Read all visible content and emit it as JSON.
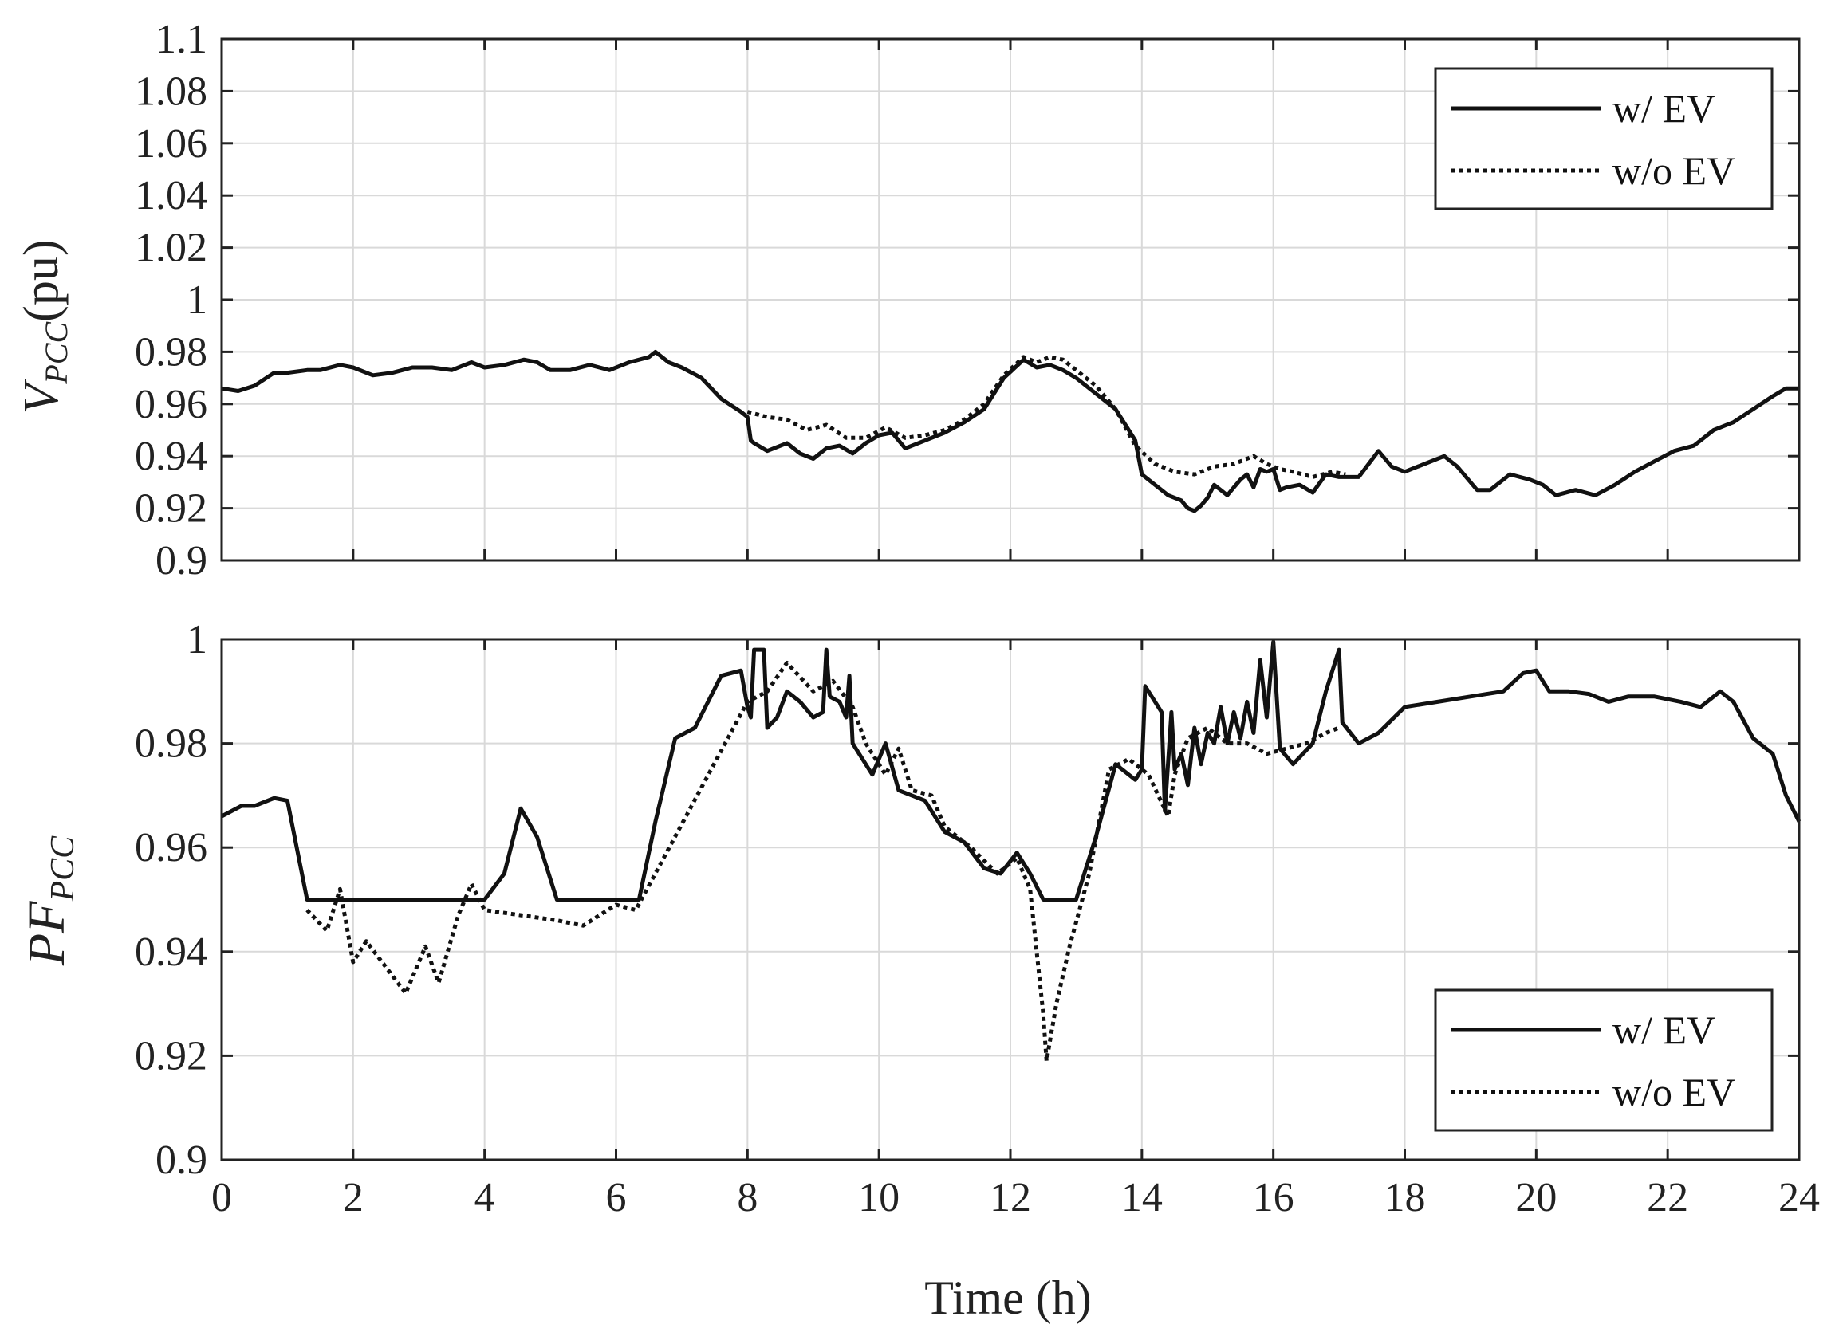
{
  "chart_data": [
    {
      "type": "line",
      "ylabel": {
        "main": "V",
        "sub": "PCC",
        "suffix": "(pu)"
      },
      "xlabel": "",
      "xlim": [
        0,
        24
      ],
      "ylim": [
        0.9,
        1.1
      ],
      "grid": true,
      "legend_position": "top-right",
      "xticks": [
        0,
        2,
        4,
        6,
        8,
        10,
        12,
        14,
        16,
        18,
        20,
        22,
        24
      ],
      "xtick_labels": [
        "",
        "",
        "",
        "",
        "",
        "",
        "",
        "",
        "",
        "",
        "",
        "",
        ""
      ],
      "yticks": [
        0.9,
        0.92,
        0.94,
        0.96,
        0.98,
        1.0,
        1.02,
        1.04,
        1.06,
        1.08,
        1.1
      ],
      "ytick_labels": [
        "0.9",
        "0.92",
        "0.94",
        "0.96",
        "0.98",
        "1",
        "1.02",
        "1.04",
        "1.06",
        "1.08",
        "1.1"
      ],
      "series": [
        {
          "name": "w/ EV",
          "style": "solid",
          "color": "#111111",
          "x": [
            0,
            0.25,
            0.5,
            0.8,
            1.0,
            1.3,
            1.5,
            1.8,
            2.0,
            2.3,
            2.6,
            2.9,
            3.2,
            3.5,
            3.8,
            4.0,
            4.3,
            4.6,
            4.8,
            5.0,
            5.3,
            5.6,
            5.9,
            6.2,
            6.5,
            6.6,
            6.8,
            7.0,
            7.3,
            7.6,
            7.9,
            8.0,
            8.05,
            8.1,
            8.3,
            8.6,
            8.8,
            9.0,
            9.2,
            9.4,
            9.6,
            9.8,
            10.0,
            10.2,
            10.4,
            10.6,
            10.8,
            11.0,
            11.3,
            11.6,
            11.9,
            12.2,
            12.4,
            12.6,
            12.8,
            13.0,
            13.3,
            13.6,
            13.9,
            14.0,
            14.2,
            14.4,
            14.6,
            14.7,
            14.8,
            14.9,
            15.0,
            15.1,
            15.2,
            15.3,
            15.4,
            15.5,
            15.6,
            15.7,
            15.8,
            15.9,
            16.0,
            16.1,
            16.2,
            16.4,
            16.6,
            16.8,
            17.0,
            17.3,
            17.6,
            17.8,
            18.0,
            18.3,
            18.6,
            18.8,
            19.1,
            19.3,
            19.6,
            19.9,
            20.1,
            20.3,
            20.6,
            20.9,
            21.2,
            21.5,
            21.8,
            22.1,
            22.4,
            22.7,
            23.0,
            23.3,
            23.6,
            23.8,
            24.0
          ],
          "y": [
            0.966,
            0.965,
            0.967,
            0.972,
            0.972,
            0.973,
            0.973,
            0.975,
            0.974,
            0.971,
            0.972,
            0.974,
            0.974,
            0.973,
            0.976,
            0.974,
            0.975,
            0.977,
            0.976,
            0.973,
            0.973,
            0.975,
            0.973,
            0.976,
            0.978,
            0.98,
            0.976,
            0.974,
            0.97,
            0.962,
            0.957,
            0.955,
            0.946,
            0.945,
            0.942,
            0.945,
            0.941,
            0.939,
            0.943,
            0.944,
            0.941,
            0.945,
            0.948,
            0.949,
            0.943,
            0.945,
            0.947,
            0.949,
            0.953,
            0.958,
            0.97,
            0.977,
            0.974,
            0.975,
            0.973,
            0.97,
            0.964,
            0.958,
            0.946,
            0.933,
            0.929,
            0.925,
            0.923,
            0.92,
            0.919,
            0.921,
            0.924,
            0.929,
            0.927,
            0.925,
            0.928,
            0.931,
            0.933,
            0.928,
            0.935,
            0.934,
            0.935,
            0.927,
            0.928,
            0.929,
            0.926,
            0.933,
            0.932,
            0.932,
            0.942,
            0.936,
            0.934,
            0.937,
            0.94,
            0.936,
            0.927,
            0.927,
            0.933,
            0.931,
            0.929,
            0.925,
            0.927,
            0.925,
            0.929,
            0.934,
            0.938,
            0.942,
            0.944,
            0.95,
            0.953,
            0.958,
            0.963,
            0.966,
            0.966
          ]
        },
        {
          "name": "w/o EV",
          "style": "dotted",
          "color": "#111111",
          "x": [
            8.0,
            8.3,
            8.6,
            8.9,
            9.2,
            9.5,
            9.8,
            10.1,
            10.4,
            10.7,
            11.0,
            11.3,
            11.6,
            11.9,
            12.2,
            12.4,
            12.6,
            12.8,
            13.0,
            13.3,
            13.6,
            13.9,
            14.2,
            14.5,
            14.8,
            15.1,
            15.4,
            15.7,
            15.9,
            16.1,
            16.3,
            16.6,
            16.9,
            17.1
          ],
          "y": [
            0.957,
            0.955,
            0.954,
            0.95,
            0.952,
            0.947,
            0.947,
            0.951,
            0.947,
            0.948,
            0.95,
            0.954,
            0.96,
            0.971,
            0.978,
            0.976,
            0.978,
            0.977,
            0.973,
            0.967,
            0.958,
            0.944,
            0.937,
            0.934,
            0.933,
            0.936,
            0.937,
            0.94,
            0.937,
            0.935,
            0.934,
            0.932,
            0.934,
            0.933
          ]
        }
      ]
    },
    {
      "type": "line",
      "ylabel": {
        "main": "PF",
        "sub": "PCC",
        "suffix": ""
      },
      "xlabel": "Time (h)",
      "xlim": [
        0,
        24
      ],
      "ylim": [
        0.9,
        1.0
      ],
      "grid": true,
      "legend_position": "bottom-right",
      "xticks": [
        0,
        2,
        4,
        6,
        8,
        10,
        12,
        14,
        16,
        18,
        20,
        22,
        24
      ],
      "xtick_labels": [
        "0",
        "2",
        "4",
        "6",
        "8",
        "10",
        "12",
        "14",
        "16",
        "18",
        "20",
        "22",
        "24"
      ],
      "yticks": [
        0.9,
        0.92,
        0.94,
        0.96,
        0.98,
        1.0
      ],
      "ytick_labels": [
        "0.9",
        "0.92",
        "0.94",
        "0.96",
        "0.98",
        "1"
      ],
      "series": [
        {
          "name": "w/ EV",
          "style": "solid",
          "color": "#111111",
          "x": [
            0,
            0.3,
            0.5,
            0.8,
            1.0,
            1.3,
            1.8,
            2.5,
            3.5,
            4.0,
            4.3,
            4.55,
            4.8,
            5.1,
            5.5,
            6.0,
            6.35,
            6.6,
            6.9,
            7.2,
            7.6,
            7.9,
            8.0,
            8.05,
            8.1,
            8.25,
            8.3,
            8.45,
            8.6,
            8.8,
            9.0,
            9.15,
            9.2,
            9.25,
            9.4,
            9.5,
            9.55,
            9.6,
            9.7,
            9.9,
            10.1,
            10.3,
            10.5,
            10.7,
            11.0,
            11.3,
            11.6,
            11.85,
            12.1,
            12.3,
            12.5,
            13.0,
            13.3,
            13.6,
            13.9,
            14.0,
            14.05,
            14.3,
            14.35,
            14.45,
            14.5,
            14.6,
            14.7,
            14.8,
            14.9,
            15.0,
            15.1,
            15.2,
            15.3,
            15.4,
            15.5,
            15.6,
            15.7,
            15.8,
            15.9,
            16.0,
            16.1,
            16.3,
            16.6,
            16.8,
            17.0,
            17.05,
            17.3,
            17.6,
            18.0,
            18.5,
            19.0,
            19.5,
            19.8,
            20.0,
            20.2,
            20.5,
            20.8,
            21.1,
            21.4,
            21.8,
            22.2,
            22.5,
            22.8,
            23.0,
            23.3,
            23.6,
            23.8,
            24.0
          ],
          "y": [
            0.966,
            0.968,
            0.968,
            0.9695,
            0.969,
            0.95,
            0.95,
            0.95,
            0.95,
            0.95,
            0.955,
            0.9675,
            0.962,
            0.95,
            0.95,
            0.95,
            0.95,
            0.965,
            0.981,
            0.983,
            0.993,
            0.994,
            0.987,
            0.985,
            0.998,
            0.998,
            0.983,
            0.985,
            0.99,
            0.988,
            0.985,
            0.986,
            0.998,
            0.989,
            0.988,
            0.985,
            0.993,
            0.98,
            0.978,
            0.974,
            0.98,
            0.971,
            0.97,
            0.969,
            0.963,
            0.961,
            0.956,
            0.955,
            0.959,
            0.955,
            0.95,
            0.95,
            0.962,
            0.976,
            0.973,
            0.975,
            0.991,
            0.986,
            0.967,
            0.986,
            0.975,
            0.978,
            0.972,
            0.983,
            0.976,
            0.982,
            0.98,
            0.987,
            0.98,
            0.986,
            0.981,
            0.988,
            0.982,
            0.996,
            0.985,
            0.9995,
            0.979,
            0.976,
            0.98,
            0.99,
            0.998,
            0.984,
            0.98,
            0.982,
            0.987,
            0.988,
            0.989,
            0.99,
            0.9935,
            0.994,
            0.99,
            0.99,
            0.9895,
            0.988,
            0.989,
            0.989,
            0.988,
            0.987,
            0.99,
            0.988,
            0.981,
            0.978,
            0.97,
            0.965
          ]
        },
        {
          "name": "w/o EV",
          "style": "dotted",
          "color": "#111111",
          "x": [
            1.3,
            1.6,
            1.8,
            2.0,
            2.2,
            2.5,
            2.8,
            3.1,
            3.3,
            3.6,
            3.8,
            4.0,
            5.1,
            5.5,
            6.0,
            6.3,
            8.0,
            8.3,
            8.6,
            9.0,
            9.3,
            9.6,
            9.8,
            10.1,
            10.3,
            10.5,
            10.8,
            11.0,
            11.4,
            11.8,
            12.1,
            12.3,
            12.5,
            12.55,
            12.7,
            12.9,
            13.2,
            13.5,
            13.8,
            14.1,
            14.4,
            14.5,
            14.7,
            15.0,
            15.3,
            15.6,
            15.9,
            16.2,
            16.5,
            16.8,
            17.0
          ],
          "y": [
            0.948,
            0.944,
            0.952,
            0.938,
            0.942,
            0.937,
            0.932,
            0.941,
            0.934,
            0.947,
            0.953,
            0.948,
            0.946,
            0.945,
            0.949,
            0.948,
            0.988,
            0.99,
            0.9955,
            0.99,
            0.992,
            0.987,
            0.98,
            0.974,
            0.979,
            0.971,
            0.97,
            0.964,
            0.96,
            0.955,
            0.958,
            0.952,
            0.928,
            0.919,
            0.93,
            0.941,
            0.955,
            0.975,
            0.977,
            0.974,
            0.966,
            0.974,
            0.981,
            0.983,
            0.98,
            0.98,
            0.978,
            0.979,
            0.98,
            0.982,
            0.983
          ]
        }
      ]
    }
  ]
}
